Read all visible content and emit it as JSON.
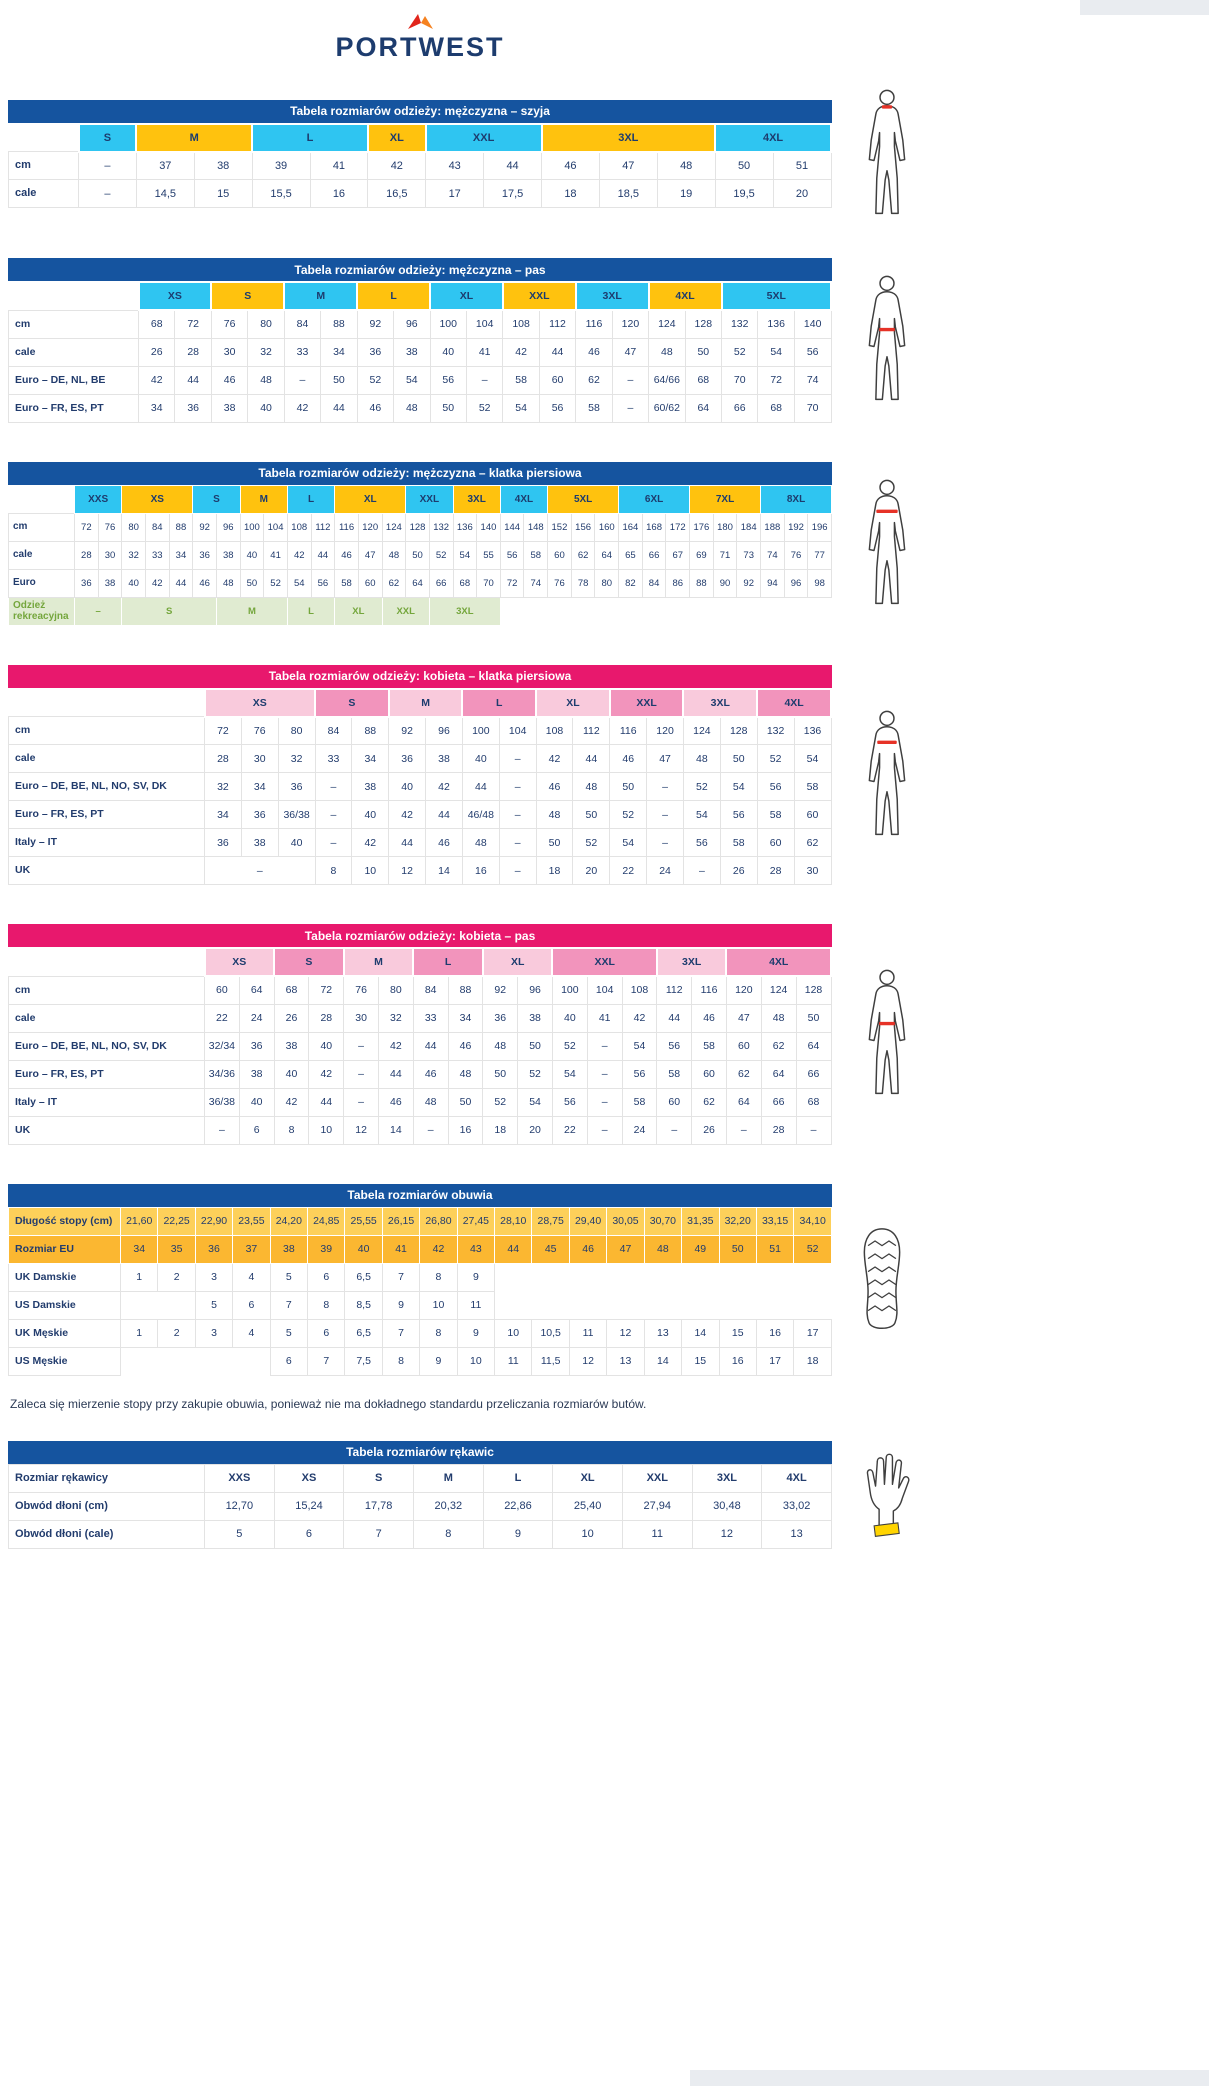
{
  "logo": {
    "brand": "PORTWEST"
  },
  "colors": {
    "blue": "#15549f",
    "pink": "#e8186d",
    "cyan": "#2fc5f1",
    "yellow": "#ffc20e",
    "pink_light": "#f9cadc",
    "pink_strong": "#f294bc",
    "green_bg": "#e0ebd1",
    "green_text": "#74a63c",
    "shoe_len_bg": "#fdd05a",
    "shoe_eu_bg": "#fbb731",
    "marker_red": "#e63227",
    "glove_cuff": "#ffd400",
    "navy": "#1d3c6e"
  },
  "note": "Zaleca się mierzenie stopy przy zakupie obuwia, ponieważ nie ma dokładnego standardu przeliczania rozmiarów butów.",
  "tables": [
    {
      "id": "men-neck",
      "theme": "blue",
      "figure": "person-neck",
      "title": "Tabela rozmiarów odzieży: mężczyzna – szyja",
      "sizes": [
        {
          "label": "S",
          "span": 1,
          "color": "cyan"
        },
        {
          "label": "M",
          "span": 2,
          "color": "yellow"
        },
        {
          "label": "L",
          "span": 2,
          "color": "cyan"
        },
        {
          "label": "XL",
          "span": 1,
          "color": "yellow"
        },
        {
          "label": "XXL",
          "span": 2,
          "color": "cyan"
        },
        {
          "label": "3XL",
          "span": 3,
          "color": "yellow"
        },
        {
          "label": "4XL",
          "span": 2,
          "color": "cyan"
        }
      ],
      "rows": [
        {
          "label": "cm",
          "cells": [
            "–",
            "37",
            "38",
            "39",
            "41",
            "42",
            "43",
            "44",
            "46",
            "47",
            "48",
            "50",
            "51"
          ]
        },
        {
          "label": "cale",
          "cells": [
            "–",
            "14,5",
            "15",
            "15,5",
            "16",
            "16,5",
            "17",
            "17,5",
            "18",
            "18,5",
            "19",
            "19,5",
            "20"
          ]
        }
      ]
    },
    {
      "id": "men-waist",
      "theme": "blue",
      "figure": "person-waist",
      "title": "Tabela rozmiarów odzieży: mężczyzna – pas",
      "sizes": [
        {
          "label": "XS",
          "span": 2,
          "color": "cyan"
        },
        {
          "label": "S",
          "span": 2,
          "color": "yellow"
        },
        {
          "label": "M",
          "span": 2,
          "color": "cyan"
        },
        {
          "label": "L",
          "span": 2,
          "color": "yellow"
        },
        {
          "label": "XL",
          "span": 2,
          "color": "cyan"
        },
        {
          "label": "XXL",
          "span": 2,
          "color": "yellow"
        },
        {
          "label": "3XL",
          "span": 2,
          "color": "cyan"
        },
        {
          "label": "4XL",
          "span": 2,
          "color": "yellow"
        },
        {
          "label": "5XL",
          "span": 3,
          "color": "cyan"
        }
      ],
      "rows": [
        {
          "label": "cm",
          "cells": [
            "68",
            "72",
            "76",
            "80",
            "84",
            "88",
            "92",
            "96",
            "100",
            "104",
            "108",
            "112",
            "116",
            "120",
            "124",
            "128",
            "132",
            "136",
            "140"
          ]
        },
        {
          "label": "cale",
          "cells": [
            "26",
            "28",
            "30",
            "32",
            "33",
            "34",
            "36",
            "38",
            "40",
            "41",
            "42",
            "44",
            "46",
            "47",
            "48",
            "50",
            "52",
            "54",
            "56"
          ]
        },
        {
          "label": "Euro – DE, NL, BE",
          "cells": [
            "42",
            "44",
            "46",
            "48",
            "–",
            "50",
            "52",
            "54",
            "56",
            "–",
            "58",
            "60",
            "62",
            "–",
            "64/66",
            "68",
            "70",
            "72",
            "74"
          ]
        },
        {
          "label": "Euro – FR, ES, PT",
          "cells": [
            "34",
            "36",
            "38",
            "40",
            "42",
            "44",
            "46",
            "48",
            "50",
            "52",
            "54",
            "56",
            "58",
            "–",
            "60/62",
            "64",
            "66",
            "68",
            "70"
          ]
        }
      ]
    },
    {
      "id": "men-chest",
      "theme": "blue",
      "figure": "person-chest",
      "title": "Tabela rozmiarów odzieży: mężczyzna – klatka piersiowa",
      "sizes": [
        {
          "label": "XXS",
          "span": 2,
          "color": "cyan"
        },
        {
          "label": "XS",
          "span": 3,
          "color": "yellow"
        },
        {
          "label": "S",
          "span": 2,
          "color": "cyan"
        },
        {
          "label": "M",
          "span": 2,
          "color": "yellow"
        },
        {
          "label": "L",
          "span": 2,
          "color": "cyan"
        },
        {
          "label": "XL",
          "span": 3,
          "color": "yellow"
        },
        {
          "label": "XXL",
          "span": 2,
          "color": "cyan"
        },
        {
          "label": "3XL",
          "span": 2,
          "color": "yellow"
        },
        {
          "label": "4XL",
          "span": 2,
          "color": "cyan"
        },
        {
          "label": "5XL",
          "span": 3,
          "color": "yellow"
        },
        {
          "label": "6XL",
          "span": 3,
          "color": "cyan"
        },
        {
          "label": "7XL",
          "span": 3,
          "color": "yellow"
        },
        {
          "label": "8XL",
          "span": 3,
          "color": "cyan"
        }
      ],
      "rows": [
        {
          "label": "cm",
          "cells": [
            "72",
            "76",
            "80",
            "84",
            "88",
            "92",
            "96",
            "100",
            "104",
            "108",
            "112",
            "116",
            "120",
            "124",
            "128",
            "132",
            "136",
            "140",
            "144",
            "148",
            "152",
            "156",
            "160",
            "164",
            "168",
            "172",
            "176",
            "180",
            "184",
            "188",
            "192",
            "196"
          ]
        },
        {
          "label": "cale",
          "cells": [
            "28",
            "30",
            "32",
            "33",
            "34",
            "36",
            "38",
            "40",
            "41",
            "42",
            "44",
            "46",
            "47",
            "48",
            "50",
            "52",
            "54",
            "55",
            "56",
            "58",
            "60",
            "62",
            "64",
            "65",
            "66",
            "67",
            "69",
            "71",
            "73",
            "74",
            "76",
            "77"
          ]
        },
        {
          "label": "Euro",
          "cells": [
            "36",
            "38",
            "40",
            "42",
            "44",
            "46",
            "48",
            "50",
            "52",
            "54",
            "56",
            "58",
            "60",
            "62",
            "64",
            "66",
            "68",
            "70",
            "72",
            "74",
            "76",
            "78",
            "80",
            "82",
            "84",
            "86",
            "88",
            "90",
            "92",
            "94",
            "96",
            "98"
          ]
        },
        {
          "label": "Odzież rekreacyjna",
          "style": "green",
          "cells": [
            {
              "v": "–",
              "span": 2
            },
            {
              "v": "S",
              "span": 4
            },
            {
              "v": "M",
              "span": 3
            },
            {
              "v": "L",
              "span": 2
            },
            {
              "v": "XL",
              "span": 2
            },
            {
              "v": "XXL",
              "span": 2
            },
            {
              "v": "3XL",
              "span": 3
            },
            {
              "v": "",
              "span": 14,
              "blank": true
            }
          ]
        }
      ]
    },
    {
      "id": "women-chest",
      "theme": "pink",
      "figure": "person-w-chest",
      "title": "Tabela rozmiarów odzieży: kobieta – klatka piersiowa",
      "sizes": [
        {
          "label": "XS",
          "span": 3,
          "color": "pink_light"
        },
        {
          "label": "S",
          "span": 2,
          "color": "pink_strong"
        },
        {
          "label": "M",
          "span": 2,
          "color": "pink_light"
        },
        {
          "label": "L",
          "span": 2,
          "color": "pink_strong"
        },
        {
          "label": "XL",
          "span": 2,
          "color": "pink_light"
        },
        {
          "label": "XXL",
          "span": 2,
          "color": "pink_strong"
        },
        {
          "label": "3XL",
          "span": 2,
          "color": "pink_light"
        },
        {
          "label": "4XL",
          "span": 2,
          "color": "pink_strong"
        }
      ],
      "rows": [
        {
          "label": "cm",
          "cells": [
            "72",
            "76",
            "80",
            "84",
            "88",
            "92",
            "96",
            "100",
            "104",
            "108",
            "112",
            "116",
            "120",
            "124",
            "128",
            "132",
            "136"
          ]
        },
        {
          "label": "cale",
          "cells": [
            "28",
            "30",
            "32",
            "33",
            "34",
            "36",
            "38",
            "40",
            "–",
            "42",
            "44",
            "46",
            "47",
            "48",
            "50",
            "52",
            "54"
          ]
        },
        {
          "label": "Euro – DE, BE, NL, NO, SV, DK",
          "cells": [
            "32",
            "34",
            "36",
            "–",
            "38",
            "40",
            "42",
            "44",
            "–",
            "46",
            "48",
            "50",
            "–",
            "52",
            "54",
            "56",
            "58"
          ]
        },
        {
          "label": "Euro – FR, ES, PT",
          "cells": [
            "34",
            "36",
            "36/38",
            "–",
            "40",
            "42",
            "44",
            "46/48",
            "–",
            "48",
            "50",
            "52",
            "–",
            "54",
            "56",
            "58",
            "60"
          ]
        },
        {
          "label": "Italy – IT",
          "cells": [
            "36",
            "38",
            "40",
            "–",
            "42",
            "44",
            "46",
            "48",
            "–",
            "50",
            "52",
            "54",
            "–",
            "56",
            "58",
            "60",
            "62"
          ]
        },
        {
          "label": "UK",
          "cells": [
            {
              "v": "–",
              "span": 3
            },
            "8",
            "10",
            "12",
            "14",
            "16",
            "–",
            "18",
            "20",
            "22",
            "24",
            "–",
            "26",
            "28",
            "30"
          ]
        }
      ]
    },
    {
      "id": "women-waist",
      "theme": "pink",
      "figure": "person-w-waist",
      "title": "Tabela rozmiarów odzieży: kobieta – pas",
      "sizes": [
        {
          "label": "XS",
          "span": 2,
          "color": "pink_light"
        },
        {
          "label": "S",
          "span": 2,
          "color": "pink_strong"
        },
        {
          "label": "M",
          "span": 2,
          "color": "pink_light"
        },
        {
          "label": "L",
          "span": 2,
          "color": "pink_strong"
        },
        {
          "label": "XL",
          "span": 2,
          "color": "pink_light"
        },
        {
          "label": "XXL",
          "span": 3,
          "color": "pink_strong"
        },
        {
          "label": "3XL",
          "span": 2,
          "color": "pink_light"
        },
        {
          "label": "4XL",
          "span": 3,
          "color": "pink_strong"
        }
      ],
      "rows": [
        {
          "label": "cm",
          "cells": [
            "60",
            "64",
            "68",
            "72",
            "76",
            "80",
            "84",
            "88",
            "92",
            "96",
            "100",
            "104",
            "108",
            "112",
            "116",
            "120",
            "124",
            "128"
          ]
        },
        {
          "label": "cale",
          "cells": [
            "22",
            "24",
            "26",
            "28",
            "30",
            "32",
            "33",
            "34",
            "36",
            "38",
            "40",
            "41",
            "42",
            "44",
            "46",
            "47",
            "48",
            "50"
          ]
        },
        {
          "label": "Euro – DE, BE, NL, NO, SV, DK",
          "cells": [
            "32/34",
            "36",
            "38",
            "40",
            "–",
            "42",
            "44",
            "46",
            "48",
            "50",
            "52",
            "–",
            "54",
            "56",
            "58",
            "60",
            "62",
            "64"
          ]
        },
        {
          "label": "Euro – FR, ES, PT",
          "cells": [
            "34/36",
            "38",
            "40",
            "42",
            "–",
            "44",
            "46",
            "48",
            "50",
            "52",
            "54",
            "–",
            "56",
            "58",
            "60",
            "62",
            "64",
            "66"
          ]
        },
        {
          "label": "Italy – IT",
          "cells": [
            "36/38",
            "40",
            "42",
            "44",
            "–",
            "46",
            "48",
            "50",
            "52",
            "54",
            "56",
            "–",
            "58",
            "60",
            "62",
            "64",
            "66",
            "68"
          ]
        },
        {
          "label": "UK",
          "cells": [
            "–",
            "6",
            "8",
            "10",
            "12",
            "14",
            "–",
            "16",
            "18",
            "20",
            "22",
            "–",
            "24",
            "–",
            "26",
            "–",
            "28",
            "–"
          ]
        }
      ]
    },
    {
      "id": "shoes",
      "theme": "blue",
      "figure": "shoe",
      "note_after": true,
      "title": "Tabela rozmiarów obuwia",
      "rows": [
        {
          "label": "Długość stopy (cm)",
          "bg": "shoe_len_bg",
          "cells": [
            "21,60",
            "22,25",
            "22,90",
            "23,55",
            "24,20",
            "24,85",
            "25,55",
            "26,15",
            "26,80",
            "27,45",
            "28,10",
            "28,75",
            "29,40",
            "30,05",
            "30,70",
            "31,35",
            "32,20",
            "33,15",
            "34,10"
          ]
        },
        {
          "label": "Rozmiar EU",
          "bg": "shoe_eu_bg",
          "cells": [
            "34",
            "35",
            "36",
            "37",
            "38",
            "39",
            "40",
            "41",
            "42",
            "43",
            "44",
            "45",
            "46",
            "47",
            "48",
            "49",
            "50",
            "51",
            "52"
          ]
        },
        {
          "label": "UK Damskie",
          "cells": [
            "1",
            "2",
            "3",
            "4",
            "5",
            "6",
            "6,5",
            "7",
            "8",
            "9",
            {
              "v": "",
              "span": 9,
              "blank": true
            }
          ]
        },
        {
          "label": "US Damskie",
          "cells": [
            {
              "v": "",
              "span": 2,
              "blank": true
            },
            "5",
            "6",
            "7",
            "8",
            "8,5",
            "9",
            "10",
            "11",
            {
              "v": "",
              "span": 9,
              "blank": true
            }
          ]
        },
        {
          "label": "UK Męskie",
          "cells": [
            "1",
            "2",
            "3",
            "4",
            "5",
            "6",
            "6,5",
            "7",
            "8",
            "9",
            "10",
            "10,5",
            "11",
            "12",
            "13",
            "14",
            "15",
            "16",
            "17"
          ]
        },
        {
          "label": "US Męskie",
          "cells": [
            {
              "v": "",
              "span": 4,
              "blank": true
            },
            "6",
            "7",
            "7,5",
            "8",
            "9",
            "10",
            "11",
            "11,5",
            "12",
            "13",
            "14",
            "15",
            "16",
            "17",
            "18"
          ]
        }
      ]
    },
    {
      "id": "gloves",
      "theme": "blue",
      "figure": "glove",
      "title": "Tabela rozmiarów rękawic",
      "rows": [
        {
          "label": "Rozmiar rękawicy",
          "bold": true,
          "cells": [
            "XXS",
            "XS",
            "S",
            "M",
            "L",
            "XL",
            "XXL",
            "3XL",
            "4XL"
          ]
        },
        {
          "label": "Obwód dłoni (cm)",
          "cells": [
            "12,70",
            "15,24",
            "17,78",
            "20,32",
            "22,86",
            "25,40",
            "27,94",
            "30,48",
            "33,02"
          ]
        },
        {
          "label": "Obwód dłoni (cale)",
          "cells": [
            "5",
            "6",
            "7",
            "8",
            "9",
            "10",
            "11",
            "12",
            "13"
          ]
        }
      ]
    }
  ]
}
